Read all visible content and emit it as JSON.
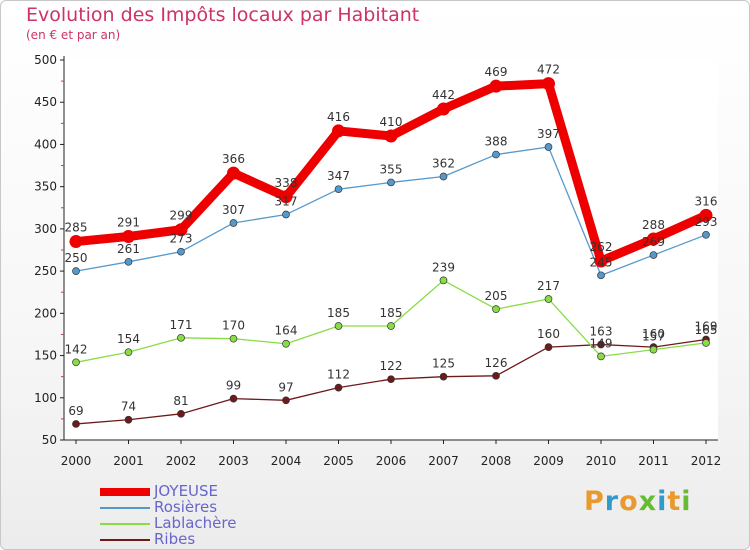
{
  "header": {
    "title": "Evolution des Impôts locaux par Habitant",
    "subtitle": "(en € et par an)"
  },
  "logo": {
    "text": "Proxiti",
    "colors": [
      "#e89a2f",
      "#3399cc",
      "#e89a2f",
      "#66bb33",
      "#3399cc",
      "#e89a2f",
      "#66bb33"
    ]
  },
  "chart_data": {
    "type": "line",
    "x": [
      "2000",
      "2001",
      "2002",
      "2003",
      "2004",
      "2005",
      "2006",
      "2007",
      "2008",
      "2009",
      "2010",
      "2011",
      "2012"
    ],
    "ylim": [
      50,
      500
    ],
    "yticks": [
      "50",
      "100",
      "150",
      "200",
      "250",
      "300",
      "350",
      "400",
      "450",
      "500"
    ],
    "grid": false,
    "legend": "bottom-left",
    "series": [
      {
        "name": "JOYEUSE",
        "color": "#ee0000",
        "values": [
          285,
          291,
          299,
          366,
          338,
          416,
          410,
          442,
          469,
          472,
          262,
          288,
          316
        ]
      },
      {
        "name": "Rosières",
        "color": "#5599cc",
        "values": [
          250,
          261,
          273,
          307,
          317,
          347,
          355,
          362,
          388,
          397,
          245,
          269,
          293
        ]
      },
      {
        "name": "Lablachère",
        "color": "#88dd44",
        "values": [
          142,
          154,
          171,
          170,
          164,
          185,
          185,
          239,
          205,
          217,
          149,
          157,
          165
        ]
      },
      {
        "name": "Ribes",
        "color": "#6e1a1a",
        "values": [
          69,
          74,
          81,
          99,
          97,
          112,
          122,
          125,
          126,
          160,
          163,
          160,
          169
        ]
      }
    ]
  }
}
